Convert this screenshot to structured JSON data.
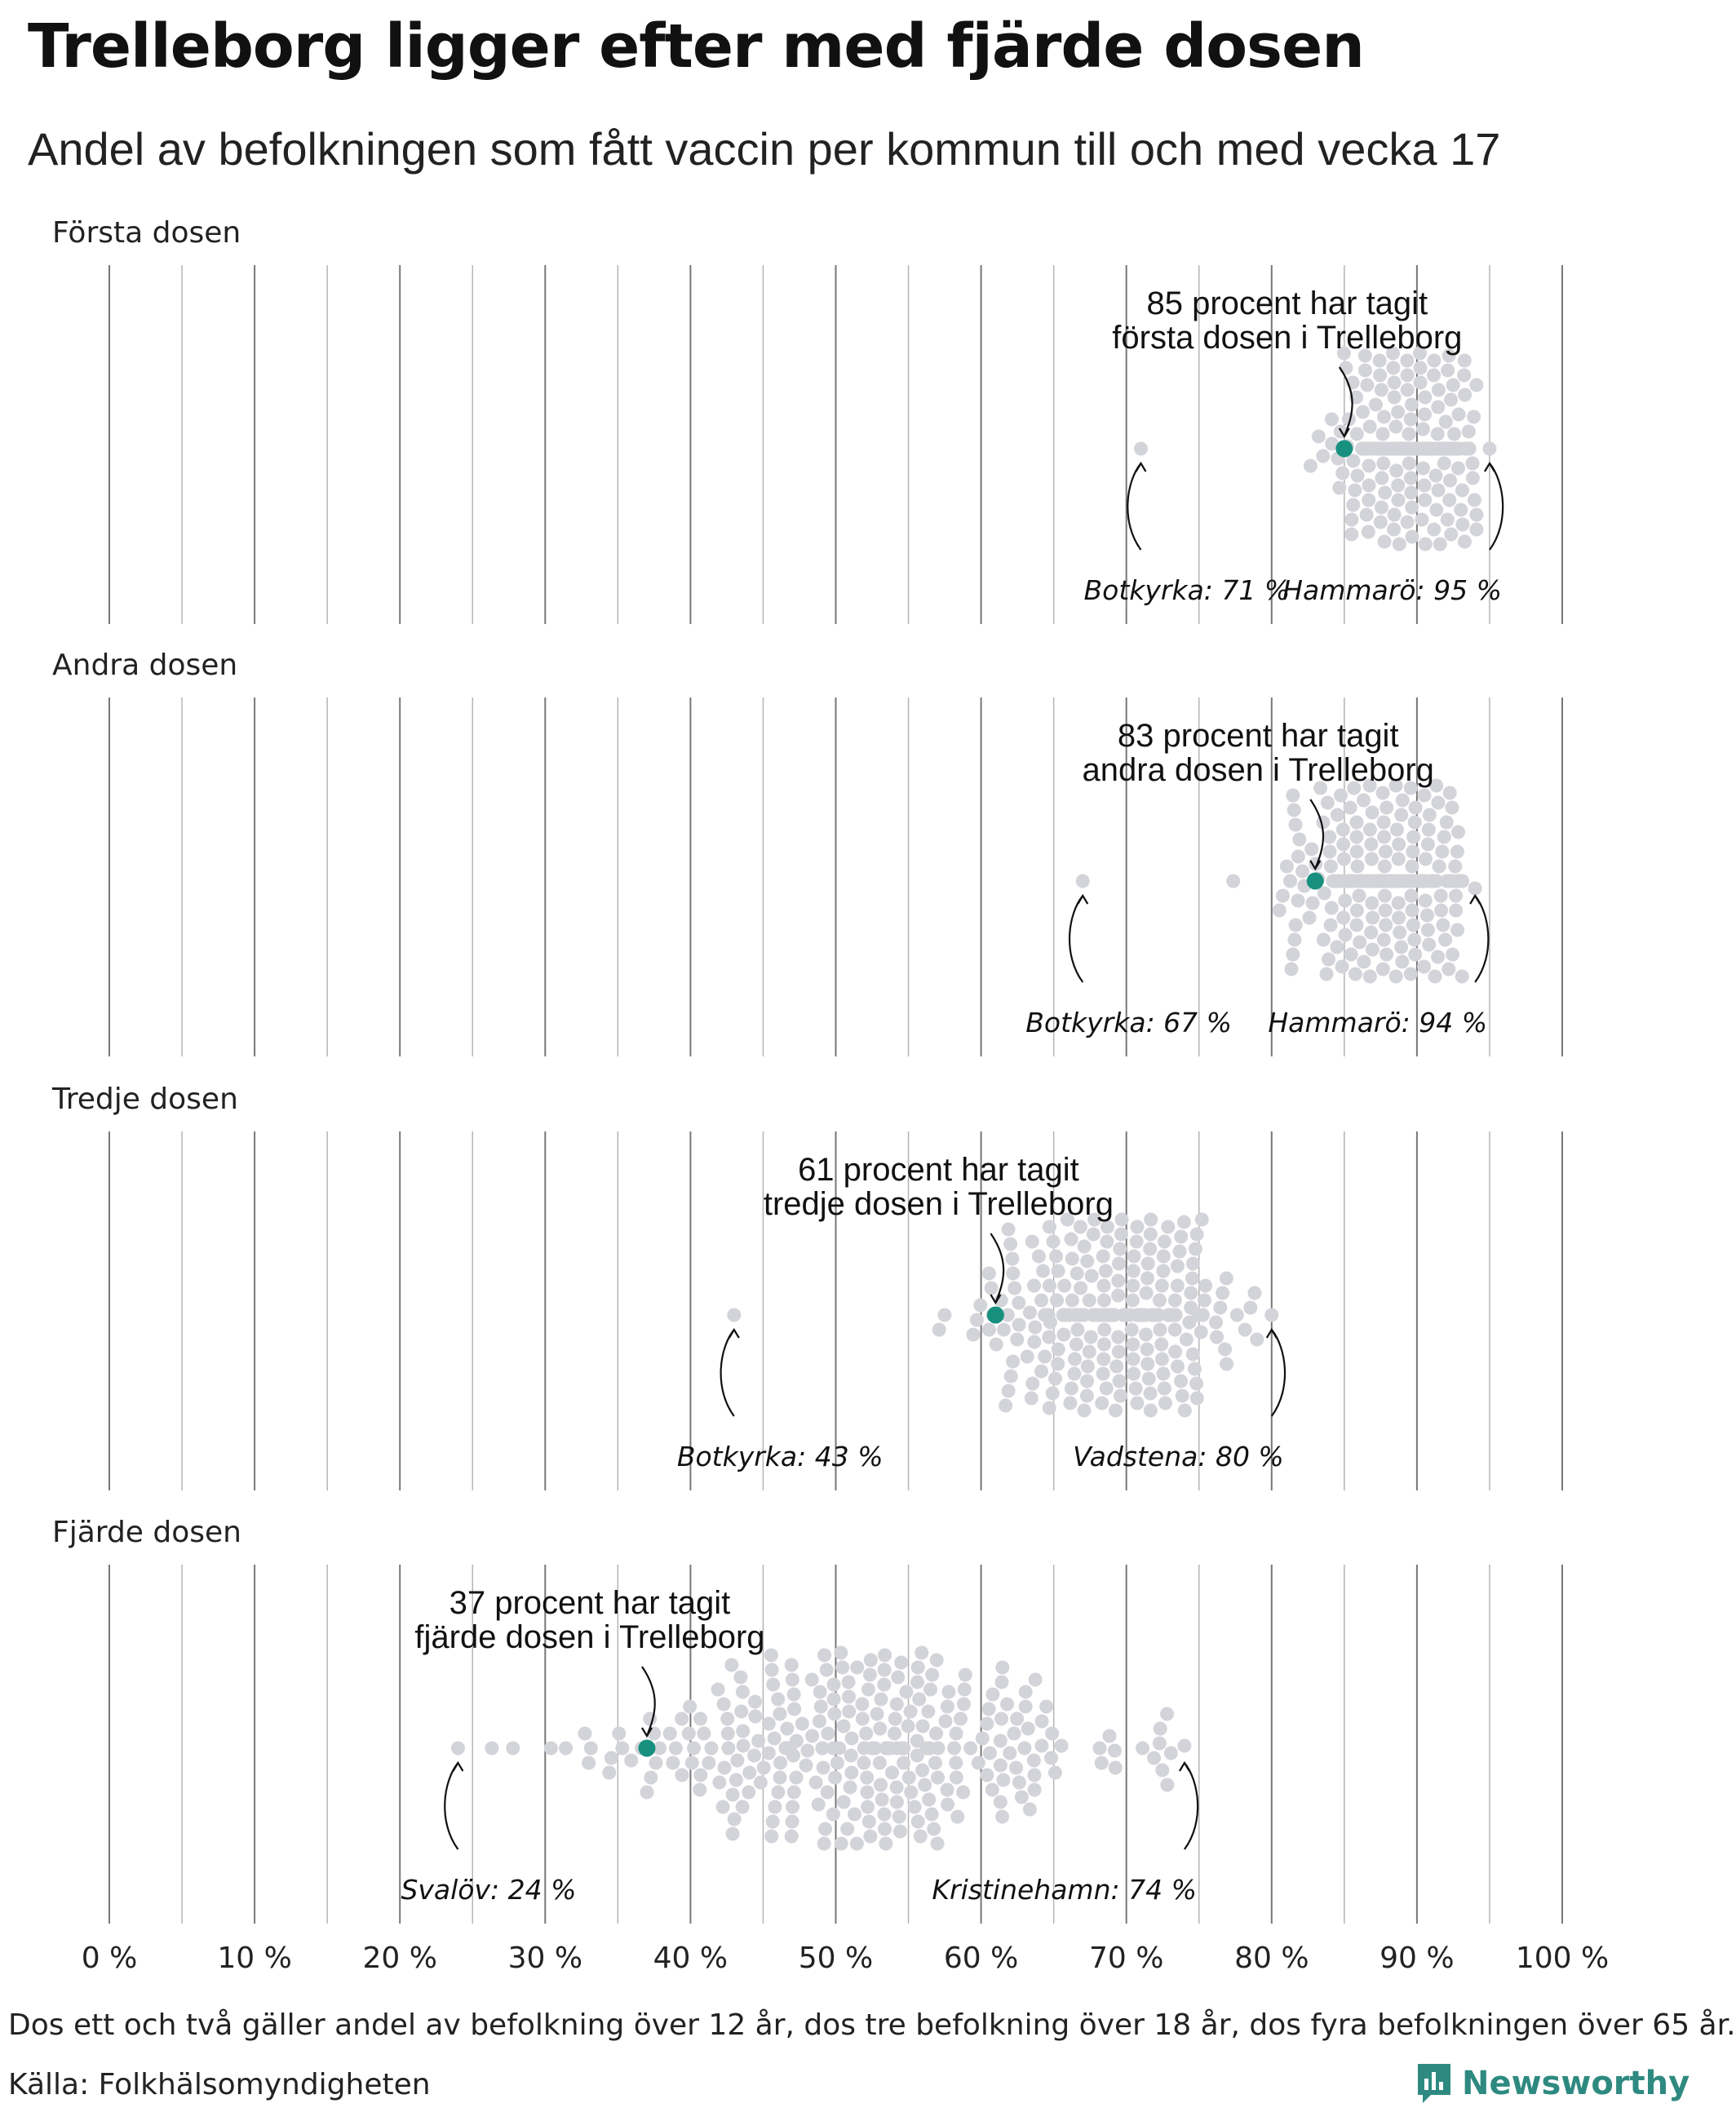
{
  "title": "Trelleborg ligger efter med fjärde dosen",
  "subtitle": "Andel av befolkningen som fått vaccin per kommun till och med vecka 17",
  "footnote": "Dos ett och två gäller andel av befolkning över 12 år, dos tre befolkning över 18 år, dos fyra befolkningen över 65 år.",
  "source": "Källa: Folkhälsomyndigheten",
  "brand": {
    "name": "Newsworthy",
    "icon": "bar-chart-logo-icon",
    "color": "#2e8a80"
  },
  "colors": {
    "dot": "#d3d3da",
    "highlight": "#18907f",
    "grid": "#9a9a9a"
  },
  "chart_data": [
    {
      "type": "scatter",
      "panel_label": "Första dosen",
      "xlim": [
        0,
        100
      ],
      "highlight": {
        "value": 85,
        "label_line1": "85 procent har tagit",
        "label_line2": "första dosen i Trelleborg"
      },
      "min": {
        "value": 71,
        "label": "Botkyrka: 71 %"
      },
      "max": {
        "value": 95,
        "label": "Hammarö: 95 %"
      },
      "distribution": {
        "mean": 89.5,
        "sd": 2.6
      }
    },
    {
      "type": "scatter",
      "panel_label": "Andra dosen",
      "xlim": [
        0,
        100
      ],
      "highlight": {
        "value": 83,
        "label_line1": "83 procent har tagit",
        "label_line2": "andra dosen i Trelleborg"
      },
      "min": {
        "value": 67,
        "label": "Botkyrka: 67 %"
      },
      "max": {
        "value": 94,
        "label": "Hammarö: 94 %"
      },
      "distribution": {
        "mean": 87.8,
        "sd": 3.0
      }
    },
    {
      "type": "scatter",
      "panel_label": "Tredje dosen",
      "xlim": [
        0,
        100
      ],
      "highlight": {
        "value": 61,
        "label_line1": "61 procent har tagit",
        "label_line2": "tredje dosen i Trelleborg"
      },
      "min": {
        "value": 43,
        "label": "Botkyrka: 43 %"
      },
      "max": {
        "value": 80,
        "label": "Vadstena: 80 %"
      },
      "distribution": {
        "mean": 68.5,
        "sd": 4.3
      }
    },
    {
      "type": "scatter",
      "panel_label": "Fjärde dosen",
      "xlim": [
        0,
        100
      ],
      "highlight": {
        "value": 37,
        "label_line1": "37 procent har tagit",
        "label_line2": "fjärde dosen i Trelleborg"
      },
      "min": {
        "value": 24,
        "label": "Svalöv: 24 %"
      },
      "max": {
        "value": 74,
        "label": "Kristinehamn: 74 %"
      },
      "distribution": {
        "mean": 52,
        "sd": 8.5
      }
    }
  ],
  "x_ticks": [
    "0 %",
    "10 %",
    "20 %",
    "30 %",
    "40 %",
    "50 %",
    "60 %",
    "70 %",
    "80 %",
    "90 %",
    "100 %"
  ]
}
